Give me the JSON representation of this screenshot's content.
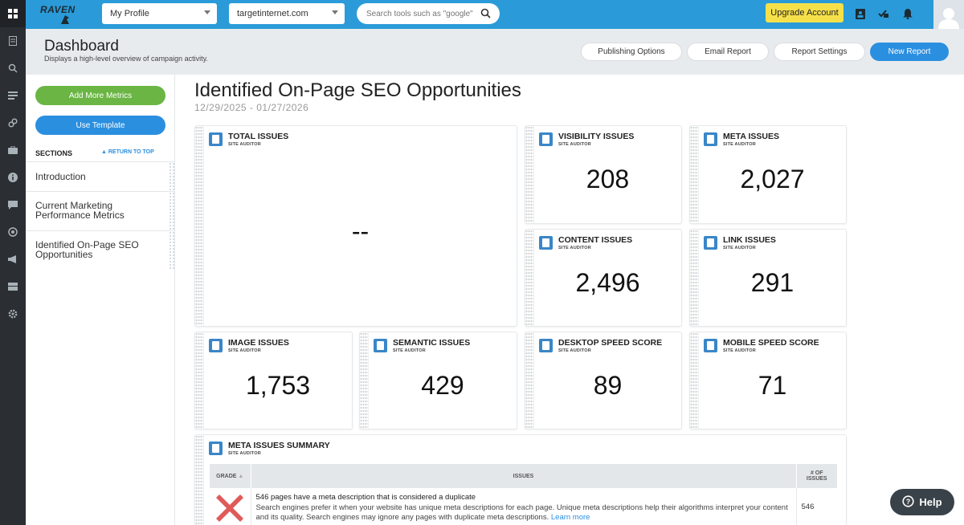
{
  "topbar": {
    "brand": "RAVEN",
    "profile_select": "My Profile",
    "domain_select": "targetinternet.com",
    "search_placeholder": "Search tools such as \"google\"",
    "upgrade_label": "Upgrade Account"
  },
  "header": {
    "title": "Dashboard",
    "subtitle": "Displays a high-level overview of campaign activity.",
    "buttons": [
      "Publishing Options",
      "Email Report",
      "Report Settings",
      "New Report"
    ]
  },
  "sidebar": {
    "add_metrics": "Add More Metrics",
    "use_template": "Use Template",
    "sections_label": "SECTIONS",
    "return_to_top": "RETURN TO TOP",
    "items": [
      "Introduction",
      "Current Marketing Performance Metrics",
      "Identified On-Page SEO Opportunities"
    ]
  },
  "report": {
    "title": "Identified On-Page SEO Opportunities",
    "date_range": "12/29/2025 - 01/27/2026"
  },
  "cards": [
    {
      "title": "TOTAL ISSUES",
      "source": "SITE AUDITOR",
      "value": "--"
    },
    {
      "title": "VISIBILITY ISSUES",
      "source": "SITE AUDITOR",
      "value": "208"
    },
    {
      "title": "META ISSUES",
      "source": "SITE AUDITOR",
      "value": "2,027"
    },
    {
      "title": "CONTENT ISSUES",
      "source": "SITE AUDITOR",
      "value": "2,496"
    },
    {
      "title": "LINK ISSUES",
      "source": "SITE AUDITOR",
      "value": "291"
    },
    {
      "title": "IMAGE ISSUES",
      "source": "SITE AUDITOR",
      "value": "1,753"
    },
    {
      "title": "SEMANTIC ISSUES",
      "source": "SITE AUDITOR",
      "value": "429"
    },
    {
      "title": "DESKTOP SPEED SCORE",
      "source": "SITE AUDITOR",
      "value": "89"
    },
    {
      "title": "MOBILE SPEED SCORE",
      "source": "SITE AUDITOR",
      "value": "71"
    }
  ],
  "summary": {
    "title": "META ISSUES SUMMARY",
    "source": "SITE AUDITOR",
    "columns": [
      "GRADE",
      "ISSUES",
      "# OF ISSUES"
    ],
    "rows": [
      {
        "grade_icon": "red-x-icon",
        "headline": "546 pages have a meta description that is considered a duplicate",
        "description": "Search engines prefer it when your website has unique meta descriptions for each page. Unique meta descriptions help their algorithms interpret your content and its quality. Search engines may ignore any pages with duplicate meta descriptions.",
        "link": "Learn more",
        "count": "546"
      }
    ]
  },
  "help_label": "Help",
  "colors": {
    "topbar": "#2a9bd8",
    "rail": "#2b2f33",
    "green": "#6ab543",
    "blue": "#2b8fe0",
    "upgrade": "#f6e04a",
    "grade_fail": "#e05a5a"
  }
}
